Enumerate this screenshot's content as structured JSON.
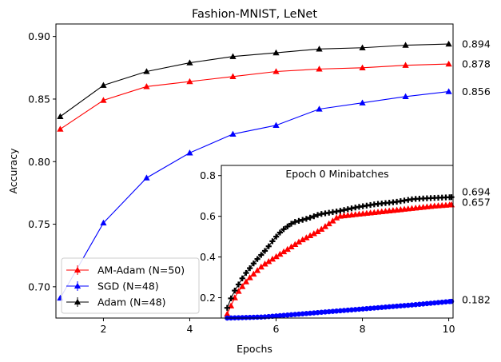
{
  "chart_data": [
    {
      "type": "line",
      "title": "Fashion-MNIST, LeNet",
      "xlabel": "Epochs",
      "ylabel": "Accuracy",
      "xlim": [
        0.9,
        10.1
      ],
      "ylim": [
        0.675,
        0.91
      ],
      "xticks": [
        2,
        4,
        6,
        8,
        10
      ],
      "yticks": [
        0.7,
        0.75,
        0.8,
        0.85,
        0.9
      ],
      "grid": false,
      "legend_position": "lower-left",
      "x": [
        1,
        2,
        3,
        4,
        5,
        6,
        7,
        8,
        9,
        10
      ],
      "series": [
        {
          "name": "AM-Adam (N=50)",
          "color": "#ff0000",
          "marker": "triangle",
          "values": [
            0.826,
            0.849,
            0.86,
            0.864,
            0.868,
            0.872,
            0.874,
            0.875,
            0.877,
            0.878
          ],
          "end_label": "0.878"
        },
        {
          "name": "SGD (N=48)",
          "color": "#0000ff",
          "marker": "triangle",
          "values": [
            0.691,
            0.751,
            0.787,
            0.807,
            0.822,
            0.829,
            0.842,
            0.847,
            0.852,
            0.856
          ],
          "end_label": "0.856"
        },
        {
          "name": "Adam (N=48)",
          "color": "#000000",
          "marker": "triangle",
          "values": [
            0.836,
            0.861,
            0.872,
            0.879,
            0.884,
            0.887,
            0.89,
            0.891,
            0.893,
            0.894
          ],
          "end_label": "0.894"
        }
      ]
    },
    {
      "type": "line",
      "title": "Epoch 0 Minibatches",
      "xlim": [
        0,
        60
      ],
      "ylim": [
        0.1,
        0.85
      ],
      "yticks": [
        0.2,
        0.4,
        0.6,
        0.8
      ],
      "grid": false,
      "series": [
        {
          "color": "#ff0000",
          "marker": "triangle",
          "end_label": "0.657",
          "anchors": [
            [
              0.5,
              0.12
            ],
            [
              3,
              0.22
            ],
            [
              6,
              0.29
            ],
            [
              10,
              0.36
            ],
            [
              15,
              0.42
            ],
            [
              20,
              0.48
            ],
            [
              25,
              0.53
            ],
            [
              28,
              0.57
            ],
            [
              30,
              0.6
            ],
            [
              35,
              0.61
            ],
            [
              40,
              0.62
            ],
            [
              45,
              0.63
            ],
            [
              50,
              0.64
            ],
            [
              55,
              0.65
            ],
            [
              60,
              0.657
            ]
          ]
        },
        {
          "color": "#0000ff",
          "marker": "circle",
          "end_label": "0.182",
          "anchors": [
            [
              0.5,
              0.1
            ],
            [
              10,
              0.105
            ],
            [
              20,
              0.12
            ],
            [
              30,
              0.135
            ],
            [
              40,
              0.15
            ],
            [
              50,
              0.165
            ],
            [
              60,
              0.182
            ]
          ]
        },
        {
          "color": "#000000",
          "marker": "plus",
          "end_label": "0.694",
          "anchors": [
            [
              0.5,
              0.15
            ],
            [
              2,
              0.22
            ],
            [
              5,
              0.31
            ],
            [
              8,
              0.38
            ],
            [
              11,
              0.44
            ],
            [
              13,
              0.49
            ],
            [
              15,
              0.53
            ],
            [
              18,
              0.57
            ],
            [
              22,
              0.59
            ],
            [
              25,
              0.61
            ],
            [
              30,
              0.625
            ],
            [
              35,
              0.645
            ],
            [
              40,
              0.66
            ],
            [
              45,
              0.67
            ],
            [
              50,
              0.685
            ],
            [
              55,
              0.69
            ],
            [
              60,
              0.694
            ]
          ]
        }
      ]
    }
  ]
}
